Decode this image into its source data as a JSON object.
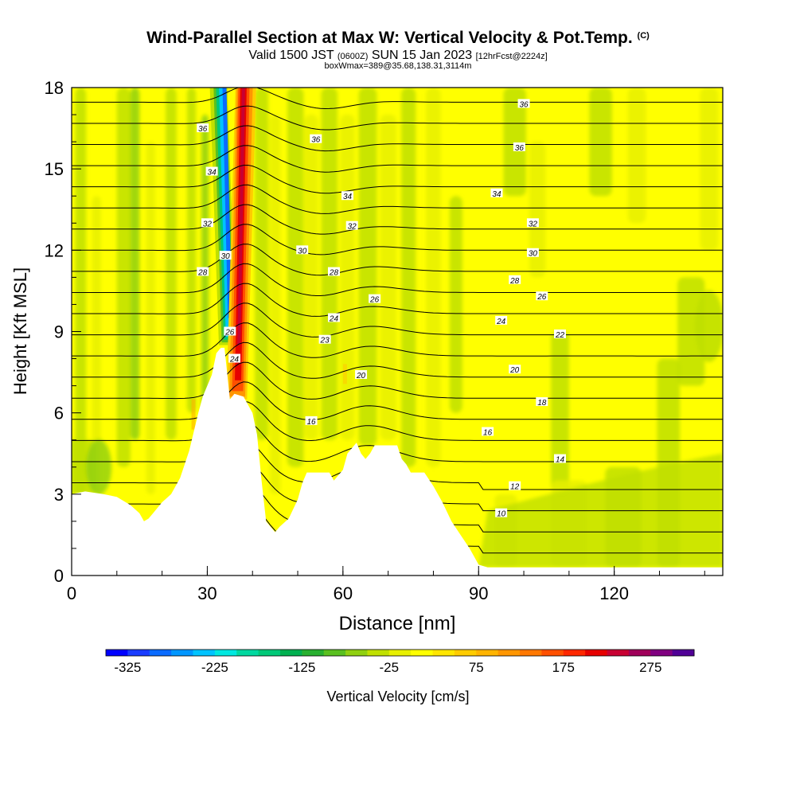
{
  "header": {
    "title": "Wind-Parallel Section at Max W: Vertical Velocity & Pot.Temp.",
    "copyright": "(C)",
    "valid_prefix": "Valid 1500 JST",
    "valid_utc": "(0600Z)",
    "valid_date": "SUN 15 Jan 2023",
    "forecast": "[12hrFcst@2224z]",
    "boxwmax": "boxWmax=389@35.68,138.31,3114m"
  },
  "colors": {
    "colorbar": [
      "#0000ff",
      "#1a3cff",
      "#0a6bff",
      "#0096ff",
      "#00c3ff",
      "#00e8e0",
      "#00d8a0",
      "#00c878",
      "#00b050",
      "#28b030",
      "#5ac020",
      "#90d010",
      "#c0e000",
      "#e8f000",
      "#ffff00",
      "#ffe600",
      "#ffcc00",
      "#ffb400",
      "#ff9600",
      "#ff7800",
      "#ff5000",
      "#ff2800",
      "#e60000",
      "#c80032",
      "#a0005a",
      "#800080",
      "#500096"
    ],
    "terrain": "#ffffff",
    "contour": "#000000"
  },
  "chart_data": {
    "type": "heatmap",
    "title": "Wind-Parallel Section at Max W: Vertical Velocity & Pot.Temp.",
    "xlabel": "Distance [nm]",
    "ylabel": "Height [Kft MSL]",
    "xlim": [
      0,
      144
    ],
    "ylim": [
      0,
      18
    ],
    "x_ticks": [
      0,
      30,
      60,
      90,
      120
    ],
    "y_ticks": [
      0,
      3,
      6,
      9,
      12,
      15,
      18
    ],
    "colorbar": {
      "label": "Vertical Velocity [cm/s]",
      "ticks": [
        -325,
        -225,
        -125,
        -25,
        75,
        175,
        275
      ],
      "range": [
        -350,
        325
      ]
    },
    "terrain_profile": {
      "x": [
        0,
        3,
        7,
        10,
        13,
        15,
        16,
        17,
        18,
        20,
        22,
        24,
        26,
        27,
        28,
        29,
        30,
        31,
        32,
        33,
        33.8,
        34.5,
        35,
        36,
        38,
        40,
        41,
        42,
        43,
        44,
        45,
        46,
        48,
        50,
        51,
        52,
        54,
        56,
        57,
        58,
        60,
        61,
        62,
        63,
        64,
        65,
        66,
        67,
        68,
        70,
        72,
        73,
        74,
        75,
        78,
        80,
        82,
        84,
        86,
        88,
        90,
        92,
        144
      ],
      "y": [
        3,
        3.1,
        3.0,
        2.9,
        2.6,
        2.3,
        2.0,
        2.1,
        2.3,
        2.7,
        3.0,
        3.6,
        4.6,
        5.3,
        6.0,
        6.6,
        7.0,
        7.4,
        8.2,
        8.4,
        8.4,
        7.3,
        6.5,
        6.7,
        6.6,
        6.0,
        5.2,
        3.5,
        2.0,
        1.8,
        1.6,
        1.8,
        2.1,
        2.8,
        3.4,
        3.8,
        3.8,
        3.8,
        3.8,
        3.5,
        3.9,
        4.5,
        4.7,
        4.9,
        4.5,
        4.3,
        4.5,
        4.8,
        4.8,
        4.8,
        4.8,
        4.3,
        4.1,
        3.8,
        3.8,
        3.3,
        2.7,
        2.0,
        1.5,
        1.0,
        0.4,
        0.3,
        0.3
      ]
    },
    "series": [
      {
        "name": "Vertical Velocity",
        "note": "updraft/downdraft couplet near 33-40 nm",
        "features": [
          {
            "x": 35.0,
            "top": 18,
            "bottom": 8.5,
            "value": -300
          },
          {
            "x": 38.0,
            "top": 18,
            "bottom": 6.5,
            "value": 389
          }
        ]
      },
      {
        "name": "Pot.Temp.",
        "contour_labels": [
          {
            "x": 29,
            "y": 16.5,
            "text": "36"
          },
          {
            "x": 54,
            "y": 16.1,
            "text": "36"
          },
          {
            "x": 100,
            "y": 17.4,
            "text": "36"
          },
          {
            "x": 99,
            "y": 15.8,
            "text": "36"
          },
          {
            "x": 31,
            "y": 14.9,
            "text": "34"
          },
          {
            "x": 61,
            "y": 14.0,
            "text": "34"
          },
          {
            "x": 94,
            "y": 14.1,
            "text": "34"
          },
          {
            "x": 30,
            "y": 13.0,
            "text": "32"
          },
          {
            "x": 62,
            "y": 12.9,
            "text": "32"
          },
          {
            "x": 102,
            "y": 13.0,
            "text": "32"
          },
          {
            "x": 34,
            "y": 11.8,
            "text": "30"
          },
          {
            "x": 51,
            "y": 12.0,
            "text": "30"
          },
          {
            "x": 102,
            "y": 11.9,
            "text": "30"
          },
          {
            "x": 29,
            "y": 11.2,
            "text": "28"
          },
          {
            "x": 58,
            "y": 11.2,
            "text": "28"
          },
          {
            "x": 98,
            "y": 10.9,
            "text": "28"
          },
          {
            "x": 35,
            "y": 9.0,
            "text": "26"
          },
          {
            "x": 67,
            "y": 10.2,
            "text": "26"
          },
          {
            "x": 104,
            "y": 10.3,
            "text": "26"
          },
          {
            "x": 58,
            "y": 9.5,
            "text": "24"
          },
          {
            "x": 95,
            "y": 9.4,
            "text": "24"
          },
          {
            "x": 36,
            "y": 8.0,
            "text": "24"
          },
          {
            "x": 56,
            "y": 8.7,
            "text": "23"
          },
          {
            "x": 108,
            "y": 8.9,
            "text": "22"
          },
          {
            "x": 64,
            "y": 7.4,
            "text": "20"
          },
          {
            "x": 98,
            "y": 7.6,
            "text": "20"
          },
          {
            "x": 104,
            "y": 6.4,
            "text": "18"
          },
          {
            "x": 53,
            "y": 5.7,
            "text": "16"
          },
          {
            "x": 92,
            "y": 5.3,
            "text": "16"
          },
          {
            "x": 108,
            "y": 4.3,
            "text": "14"
          },
          {
            "x": 98,
            "y": 3.3,
            "text": "12"
          },
          {
            "x": 95,
            "y": 2.3,
            "text": "10"
          }
        ]
      }
    ]
  }
}
